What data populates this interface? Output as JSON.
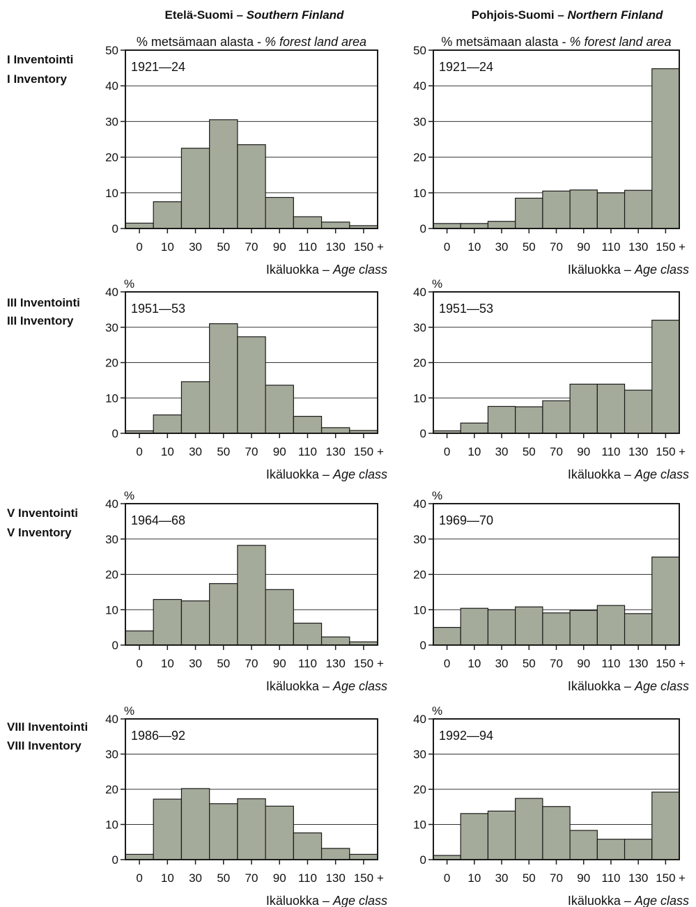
{
  "header": {
    "left_fi": "Etelä-Suomi – ",
    "left_en": "Southern Finland",
    "right_fi": "Pohjois-Suomi – ",
    "right_en": "Northern Finland"
  },
  "rows": [
    {
      "fi": "I Inventointi",
      "en": "I Inventory"
    },
    {
      "fi": "III Inventointi",
      "en": "III Inventory"
    },
    {
      "fi": "V Inventointi",
      "en": "V Inventory"
    },
    {
      "fi": "VIII Inventointi",
      "en": "VIII Inventory"
    }
  ],
  "labels": {
    "ylabel_fi": "% metsämaan alasta - ",
    "ylabel_en": "% forest land area",
    "ylabel_short": "%",
    "xlabel_fi": "Ikäluokka – ",
    "xlabel_en": "Age class",
    "plus": "+"
  },
  "chart_data": [
    {
      "type": "bar",
      "title": "1921—24",
      "ylim": [
        0,
        50
      ],
      "yticks": [
        0,
        10,
        20,
        30,
        40,
        50
      ],
      "categories": [
        "0",
        "10",
        "30",
        "50",
        "70",
        "90",
        "110",
        "130",
        "150"
      ],
      "values": [
        1.5,
        7.5,
        22.5,
        30.5,
        23.5,
        8.7,
        3.3,
        1.8,
        0.8
      ]
    },
    {
      "type": "bar",
      "title": "1921—24",
      "ylim": [
        0,
        50
      ],
      "yticks": [
        0,
        10,
        20,
        30,
        40,
        50
      ],
      "categories": [
        "0",
        "10",
        "30",
        "50",
        "70",
        "90",
        "110",
        "130",
        "150"
      ],
      "values": [
        1.4,
        1.4,
        2.0,
        8.5,
        10.5,
        10.8,
        10.0,
        10.7,
        44.8
      ]
    },
    {
      "type": "bar",
      "title": "1951—53",
      "ylim": [
        0,
        40
      ],
      "yticks": [
        0,
        10,
        20,
        30,
        40
      ],
      "categories": [
        "0",
        "10",
        "30",
        "50",
        "70",
        "90",
        "110",
        "130",
        "150"
      ],
      "values": [
        0.7,
        5.2,
        14.6,
        31.0,
        27.3,
        13.6,
        4.8,
        1.6,
        0.8
      ]
    },
    {
      "type": "bar",
      "title": "1951—53",
      "ylim": [
        0,
        40
      ],
      "yticks": [
        0,
        10,
        20,
        30,
        40
      ],
      "categories": [
        "0",
        "10",
        "30",
        "50",
        "70",
        "90",
        "110",
        "130",
        "150"
      ],
      "values": [
        0.7,
        2.9,
        7.6,
        7.5,
        9.2,
        13.9,
        13.9,
        12.2,
        32.0
      ]
    },
    {
      "type": "bar",
      "title": "1964—68",
      "ylim": [
        0,
        40
      ],
      "yticks": [
        0,
        10,
        20,
        30,
        40
      ],
      "categories": [
        "0",
        "10",
        "30",
        "50",
        "70",
        "90",
        "110",
        "130",
        "150"
      ],
      "values": [
        4.0,
        12.9,
        12.5,
        17.4,
        28.2,
        15.7,
        6.2,
        2.3,
        0.9
      ]
    },
    {
      "type": "bar",
      "title": "1969—70",
      "ylim": [
        0,
        40
      ],
      "yticks": [
        0,
        10,
        20,
        30,
        40
      ],
      "categories": [
        "0",
        "10",
        "30",
        "50",
        "70",
        "90",
        "110",
        "130",
        "150"
      ],
      "values": [
        5.0,
        10.4,
        10.0,
        10.8,
        9.1,
        9.8,
        11.2,
        8.9,
        24.9
      ]
    },
    {
      "type": "bar",
      "title": "1986—92",
      "ylim": [
        0,
        40
      ],
      "yticks": [
        0,
        10,
        20,
        30,
        40
      ],
      "categories": [
        "0",
        "10",
        "30",
        "50",
        "70",
        "90",
        "110",
        "130",
        "150"
      ],
      "values": [
        1.5,
        17.2,
        20.2,
        15.9,
        17.3,
        15.2,
        7.6,
        3.2,
        1.5
      ]
    },
    {
      "type": "bar",
      "title": "1992—94",
      "ylim": [
        0,
        40
      ],
      "yticks": [
        0,
        10,
        20,
        30,
        40
      ],
      "categories": [
        "0",
        "10",
        "30",
        "50",
        "70",
        "90",
        "110",
        "130",
        "150"
      ],
      "values": [
        1.2,
        13.1,
        13.8,
        17.4,
        15.1,
        8.3,
        5.8,
        5.8,
        19.2
      ]
    }
  ],
  "colors": {
    "bar": "#a5ab9a",
    "stroke": "#1a1a1a",
    "grid": "#333333",
    "text": "#111111"
  }
}
